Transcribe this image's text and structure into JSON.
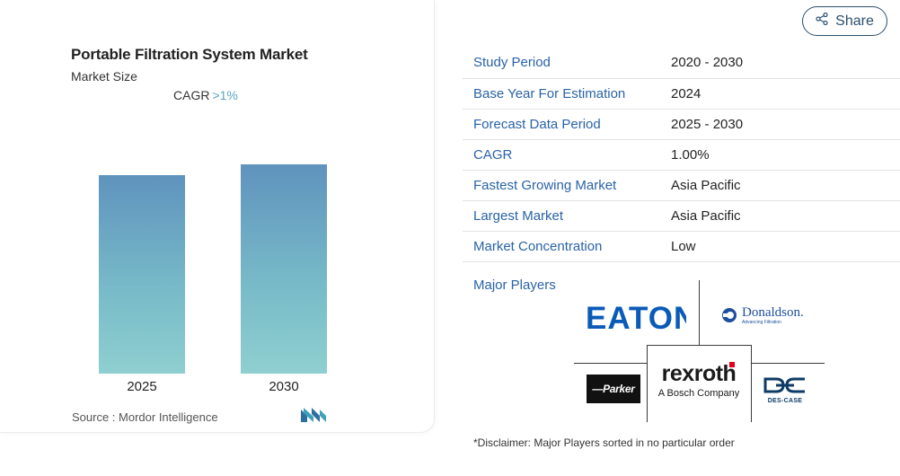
{
  "card": {
    "title": "Portable Filtration System Market",
    "subtitle": "Market Size",
    "cagr_label": "CAGR",
    "cagr_value": ">1%",
    "source": "Source :  Mordor Intelligence"
  },
  "chart_data": {
    "type": "bar",
    "categories": [
      "2025",
      "2030"
    ],
    "values": [
      0.95,
      1.0
    ],
    "ylim": [
      0,
      1.0
    ],
    "color": "#6ba6c3"
  },
  "share": {
    "label": "Share",
    "icon": "share-icon"
  },
  "info": [
    {
      "key": "Study Period",
      "value": "2020 - 2030"
    },
    {
      "key": "Base Year For Estimation",
      "value": "2024"
    },
    {
      "key": "Forecast Data Period",
      "value": "2025 - 2030"
    },
    {
      "key": "CAGR",
      "value": "1.00%"
    },
    {
      "key": "Fastest Growing Market",
      "value": "Asia Pacific"
    },
    {
      "key": "Largest Market",
      "value": "Asia Pacific"
    },
    {
      "key": "Market Concentration",
      "value": "Low"
    }
  ],
  "players": {
    "label": "Major Players",
    "eaton": "EATON",
    "donaldson": "Donaldson.",
    "donaldson_tag": "Advancing Filtration",
    "parker": "Parker",
    "rexroth": "rexroth",
    "rexroth_sub": "A Bosch Company",
    "descase": "DES-CASE"
  },
  "disclaimer": "*Disclaimer: Major Players sorted in no particular order",
  "colors": {
    "accent": "#2a63a7",
    "bar": "#6ba6c3",
    "rexroth_red": "#e2001a"
  }
}
